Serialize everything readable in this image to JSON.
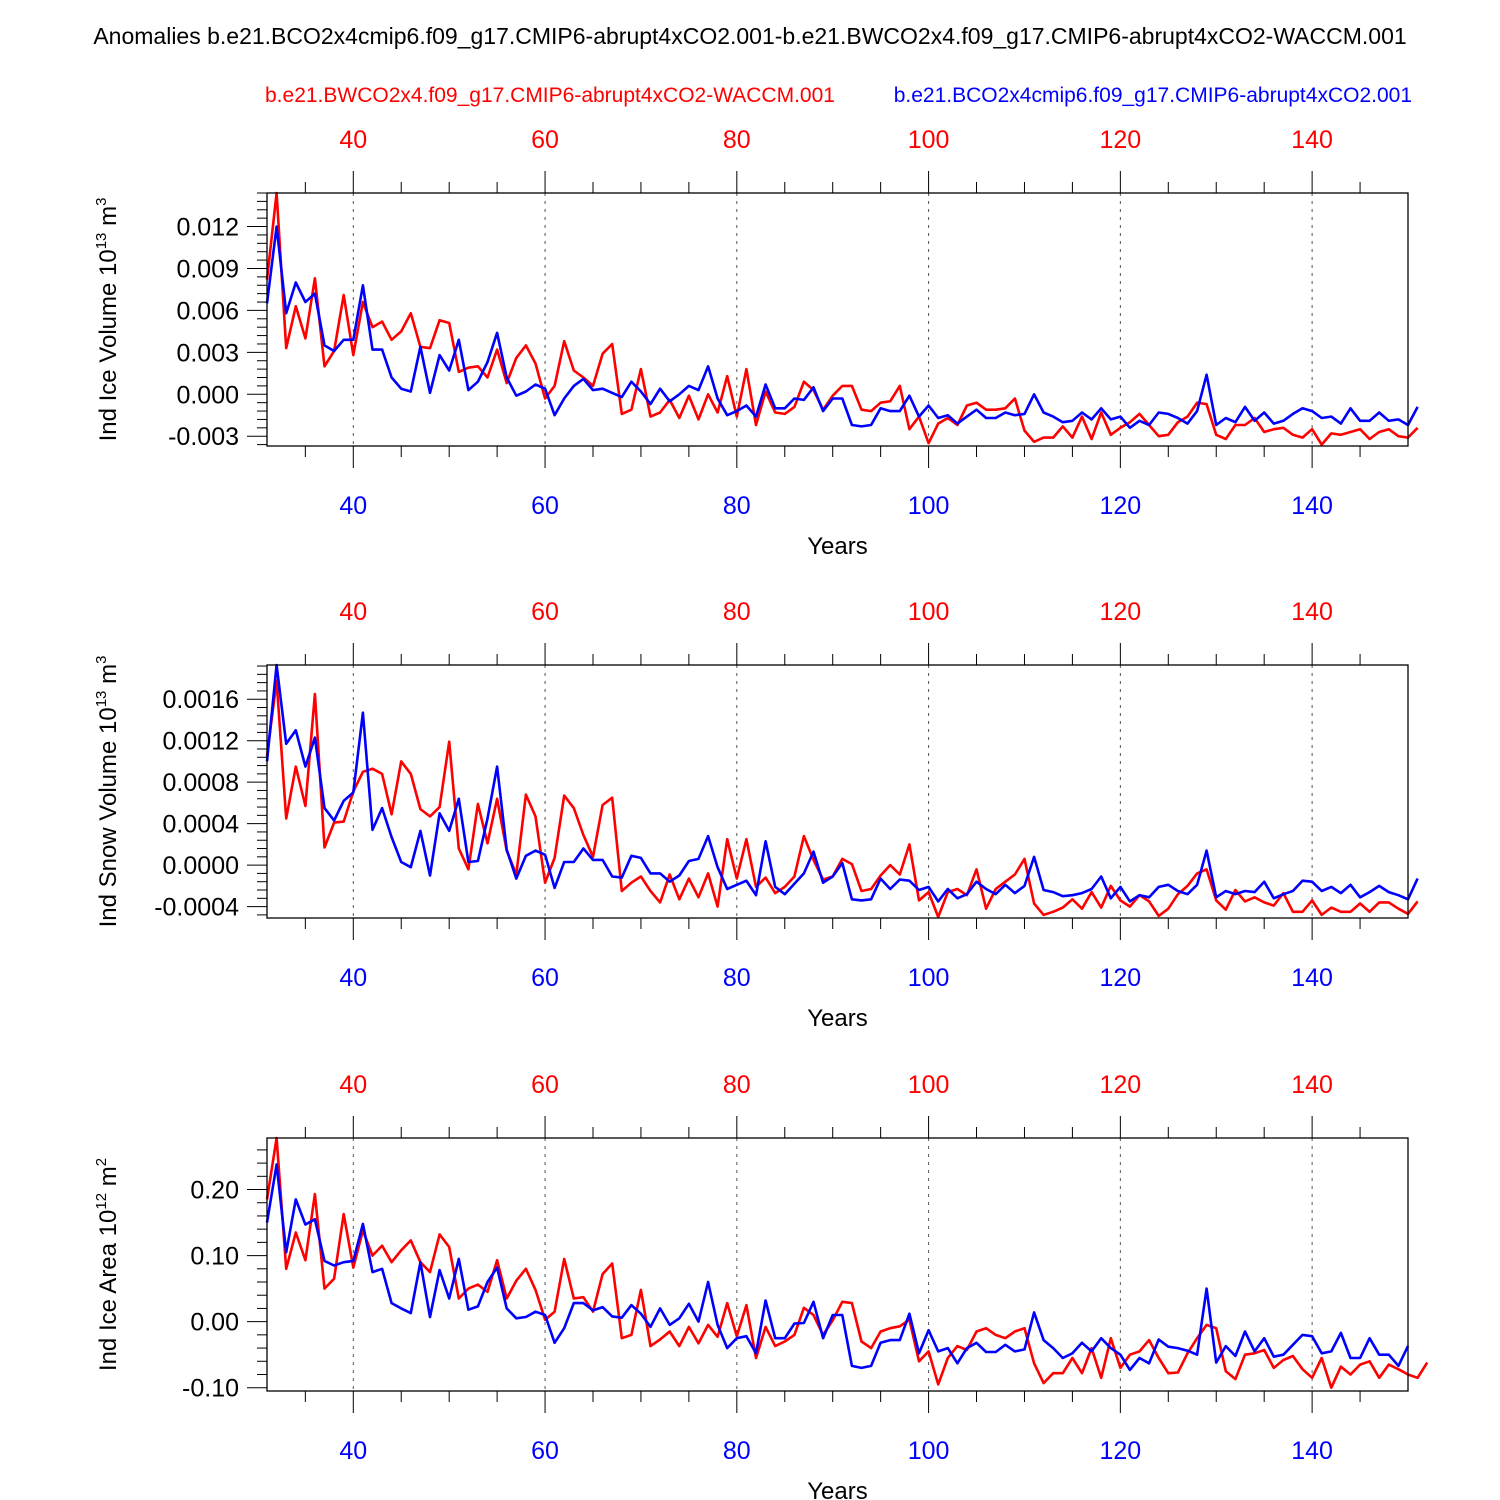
{
  "title": "Anomalies b.e21.BCO2x4cmip6.f09_g17.CMIP6-abrupt4xCO2.001-b.e21.BWCO2x4.f09_g17.CMIP6-abrupt4xCO2-WACCM.001",
  "legend": {
    "red": "b.e21.BWCO2x4.f09_g17.CMIP6-abrupt4xCO2-WACCM.001",
    "blue": "b.e21.BCO2x4cmip6.f09_g17.CMIP6-abrupt4xCO2.001"
  },
  "colors": {
    "red": "#ff0000",
    "blue": "#0000ff",
    "axis": "#000000",
    "grid": "#555555"
  },
  "chart_data": [
    {
      "type": "line",
      "ylabel": "Ind Ice Volume",
      "yunits": "10^13 m^3",
      "ylabel_parts": [
        "Ind Ice Volume 10",
        "13",
        " m",
        "3"
      ],
      "xlabel": "Years",
      "xlim": [
        31,
        150
      ],
      "ylim": [
        -0.0037,
        0.0144
      ],
      "xticks": [
        40,
        60,
        80,
        100,
        120,
        140
      ],
      "yticks": [
        -0.003,
        0.0,
        0.003,
        0.006,
        0.009,
        0.012
      ],
      "ytick_labels": [
        "-0.003",
        "0.000",
        "0.003",
        "0.006",
        "0.009",
        "0.012"
      ],
      "ytick_minor_step": 0.0006,
      "x_start": 31,
      "series": [
        {
          "name": "b.e21.BCO2x4cmip6.f09_g17.CMIP6-abrupt4xCO2.001",
          "color": "#0000ff",
          "values": [
            0.0065,
            0.012,
            0.0058,
            0.008,
            0.0066,
            0.0072,
            0.0035,
            0.0031,
            0.0039,
            0.0039,
            0.0078,
            0.0032,
            0.0032,
            0.0012,
            0.0004,
            0.0002,
            0.0034,
            0.0001,
            0.0028,
            0.0017,
            0.0039,
            0.0003,
            0.0009,
            0.0023,
            0.0044,
            0.0012,
            -0.0001,
            0.0002,
            0.0007,
            0.0004,
            -0.0015,
            -0.0003,
            0.0006,
            0.0011,
            0.0003,
            0.0004,
            0.0001,
            -0.0002,
            0.0009,
            0.0002,
            -0.0007,
            0.0004,
            -0.0005,
            0,
            0.0006,
            0.0003,
            0.002,
            -0.0003,
            -0.0015,
            -0.0012,
            -0.0008,
            -0.0016,
            0.0007,
            -0.001,
            -0.001,
            -0.0003,
            -0.0004,
            0.0005,
            -0.0012,
            -0.0003,
            -0.0003,
            -0.0022,
            -0.0023,
            -0.0022,
            -0.001,
            -0.0012,
            -0.0012,
            -0.0001,
            -0.0016,
            -0.0008,
            -0.0017,
            -0.0015,
            -0.0021,
            -0.0016,
            -0.0011,
            -0.0017,
            -0.0017,
            -0.0013,
            -0.0015,
            -0.0014,
            0,
            -0.0013,
            -0.0016,
            -0.002,
            -0.0019,
            -0.0013,
            -0.0018,
            -0.001,
            -0.0018,
            -0.0016,
            -0.0024,
            -0.0019,
            -0.0022,
            -0.0013,
            -0.0014,
            -0.0017,
            -0.0021,
            -0.0012,
            0.0014,
            -0.0022,
            -0.0017,
            -0.002,
            -0.0009,
            -0.0019,
            -0.0013,
            -0.0021,
            -0.0019,
            -0.0014,
            -0.001,
            -0.0012,
            -0.0017,
            -0.0016,
            -0.0021,
            -0.001,
            -0.0019,
            -0.0019,
            -0.0013,
            -0.0019,
            -0.0018,
            -0.0022,
            -0.0009
          ]
        },
        {
          "name": "b.e21.BWCO2x4.f09_g17.CMIP6-abrupt4xCO2-WACCM.001",
          "color": "#ff0000",
          "values": [
            0.0082,
            0.0144,
            0.0033,
            0.0063,
            0.004,
            0.0083,
            0.002,
            0.0031,
            0.0071,
            0.0028,
            0.0066,
            0.0048,
            0.0052,
            0.0039,
            0.0045,
            0.0058,
            0.0034,
            0.0033,
            0.0053,
            0.0051,
            0.0016,
            0.0019,
            0.002,
            0.0012,
            0.0032,
            0.0008,
            0.0026,
            0.0035,
            0.0022,
            -0.0003,
            0.0006,
            0.0038,
            0.0017,
            0.0012,
            0.0006,
            0.0029,
            0.0036,
            -0.0014,
            -0.0011,
            0.0018,
            -0.0016,
            -0.0013,
            -0.0004,
            -0.0017,
            -0.0001,
            -0.0018,
            0,
            -0.0013,
            0.0013,
            -0.0016,
            0.0018,
            -0.0022,
            0.0002,
            -0.0013,
            -0.0014,
            -0.0009,
            0.0009,
            0.0003,
            -0.0011,
            -0.0001,
            0.0006,
            0.0006,
            -0.0011,
            -0.0012,
            -0.0006,
            -0.0005,
            0.0006,
            -0.0025,
            -0.0016,
            -0.0035,
            -0.0021,
            -0.0017,
            -0.0022,
            -0.0008,
            -0.0006,
            -0.0011,
            -0.0011,
            -0.001,
            -0.0003,
            -0.0026,
            -0.0034,
            -0.0031,
            -0.0031,
            -0.0023,
            -0.0031,
            -0.0016,
            -0.0032,
            -0.0013,
            -0.0029,
            -0.0024,
            -0.002,
            -0.0014,
            -0.0022,
            -0.003,
            -0.0029,
            -0.002,
            -0.0016,
            -0.0006,
            -0.0007,
            -0.0029,
            -0.0032,
            -0.0022,
            -0.0022,
            -0.0017,
            -0.0027,
            -0.0025,
            -0.0024,
            -0.0029,
            -0.0031,
            -0.0025,
            -0.0036,
            -0.0028,
            -0.0029,
            -0.0027,
            -0.0025,
            -0.0032,
            -0.0027,
            -0.0025,
            -0.003,
            -0.0031,
            -0.0024
          ]
        }
      ]
    },
    {
      "type": "line",
      "ylabel": "Ind Snow Volume",
      "yunits": "10^13 m^3",
      "ylabel_parts": [
        "Ind Snow Volume 10",
        "13",
        " m",
        "3"
      ],
      "xlabel": "Years",
      "xlim": [
        31,
        150
      ],
      "ylim": [
        -0.00051,
        0.00193
      ],
      "xticks": [
        40,
        60,
        80,
        100,
        120,
        140
      ],
      "yticks": [
        -0.0004,
        0.0,
        0.0004,
        0.0008,
        0.0012,
        0.0016
      ],
      "ytick_labels": [
        "-0.0004",
        "0.0000",
        "0.0004",
        "0.0008",
        "0.0012",
        "0.0016"
      ],
      "ytick_minor_step": 8e-05,
      "x_start": 31,
      "series": [
        {
          "name": "b.e21.BCO2x4cmip6.f09_g17.CMIP6-abrupt4xCO2.001",
          "color": "#0000ff",
          "values": [
            0.001,
            0.00193,
            0.00117,
            0.0013,
            0.00095,
            0.00123,
            0.00055,
            0.00043,
            0.00062,
            0.0007,
            0.00147,
            0.00034,
            0.00055,
            0.00027,
            3e-05,
            -2e-05,
            0.00033,
            -0.0001,
            0.0005,
            0.00033,
            0.00064,
            3e-05,
            4e-05,
            0.00045,
            0.00095,
            0.00015,
            -0.00013,
            9e-05,
            0.00014,
            0.0001,
            -0.00022,
            3e-05,
            3e-05,
            0.00016,
            5e-05,
            5e-05,
            -0.00011,
            -0.00012,
            9e-05,
            7e-05,
            -8e-05,
            -8e-05,
            -0.00016,
            -0.0001,
            4e-05,
            6e-05,
            0.00028,
            -2e-05,
            -0.00023,
            -0.00019,
            -0.00015,
            -0.00029,
            0.00023,
            -0.00021,
            -0.00028,
            -0.00018,
            -8e-05,
            0.00013,
            -0.00017,
            -0.00011,
            2e-05,
            -0.00033,
            -0.00034,
            -0.00033,
            -0.00013,
            -0.00023,
            -0.00014,
            -0.00015,
            -0.00024,
            -0.00021,
            -0.00035,
            -0.00023,
            -0.00032,
            -0.00028,
            -0.00016,
            -0.00023,
            -0.00028,
            -0.00019,
            -0.00027,
            -0.0002,
            8e-05,
            -0.00024,
            -0.00026,
            -0.0003,
            -0.00029,
            -0.00027,
            -0.00023,
            -0.00011,
            -0.00032,
            -0.00021,
            -0.00035,
            -0.00029,
            -0.00031,
            -0.00021,
            -0.00019,
            -0.00025,
            -0.00028,
            -0.00019,
            0.00014,
            -0.00031,
            -0.00025,
            -0.00028,
            -0.00025,
            -0.00026,
            -0.00016,
            -0.00032,
            -0.00028,
            -0.00025,
            -0.00015,
            -0.00016,
            -0.00025,
            -0.00021,
            -0.00027,
            -0.00019,
            -0.00031,
            -0.00026,
            -0.0002,
            -0.00026,
            -0.00029,
            -0.00033,
            -0.00013
          ]
        },
        {
          "name": "b.e21.BWCO2x4.f09_g17.CMIP6-abrupt4xCO2-WACCM.001",
          "color": "#ff0000",
          "values": [
            0.00105,
            0.00178,
            0.00045,
            0.00095,
            0.00057,
            0.00165,
            0.00017,
            0.00041,
            0.00042,
            0.00071,
            0.0009,
            0.00093,
            0.00088,
            0.00049,
            0.001,
            0.00088,
            0.00054,
            0.00047,
            0.00056,
            0.00119,
            0.00016,
            -4e-05,
            0.00059,
            0.00021,
            0.00064,
            0.00014,
            -9e-05,
            0.00068,
            0.00047,
            -0.00017,
            7e-05,
            0.00067,
            0.00055,
            0.00029,
            8e-05,
            0.00058,
            0.00065,
            -0.00025,
            -0.00017,
            -0.00011,
            -0.00025,
            -0.00036,
            -9e-05,
            -0.00033,
            -0.00013,
            -0.00031,
            -8e-05,
            -0.0004,
            0.00025,
            -0.00013,
            0.00025,
            -0.00021,
            -0.00012,
            -0.00027,
            -0.00021,
            -0.00011,
            0.00028,
            5e-05,
            -0.00014,
            -0.00011,
            6e-05,
            1e-05,
            -0.00025,
            -0.00023,
            -0.0001,
            0,
            -9e-05,
            0.0002,
            -0.00034,
            -0.00026,
            -0.0005,
            -0.00026,
            -0.00023,
            -0.00029,
            -4e-05,
            -0.00042,
            -0.00023,
            -0.00016,
            -9e-05,
            6e-05,
            -0.00037,
            -0.00048,
            -0.00045,
            -0.00041,
            -0.00033,
            -0.00042,
            -0.00026,
            -0.00041,
            -0.0002,
            -0.00034,
            -0.0004,
            -0.00029,
            -0.00035,
            -0.00049,
            -0.00042,
            -0.00028,
            -0.0002,
            -8e-05,
            -4e-05,
            -0.00034,
            -0.00043,
            -0.00024,
            -0.00035,
            -0.00031,
            -0.00036,
            -0.00039,
            -0.00027,
            -0.00045,
            -0.00045,
            -0.00034,
            -0.00048,
            -0.00041,
            -0.00045,
            -0.00045,
            -0.00037,
            -0.00045,
            -0.00036,
            -0.00036,
            -0.00042,
            -0.00047,
            -0.00035
          ]
        }
      ]
    },
    {
      "type": "line",
      "ylabel": "Ind Ice Area",
      "yunits": "10^12 m^2",
      "ylabel_parts": [
        "Ind Ice Area 10",
        "12",
        " m",
        "2"
      ],
      "xlabel": "Years",
      "xlim": [
        31,
        150
      ],
      "ylim": [
        -0.105,
        0.278
      ],
      "xticks": [
        40,
        60,
        80,
        100,
        120,
        140
      ],
      "yticks": [
        -0.1,
        0.0,
        0.1,
        0.2
      ],
      "ytick_labels": [
        "-0.10",
        "0.00",
        "0.10",
        "0.20"
      ],
      "ytick_minor_step": 0.02,
      "x_start": 31,
      "series": [
        {
          "name": "b.e21.BCO2x4cmip6.f09_g17.CMIP6-abrupt4xCO2.001",
          "color": "#0000ff",
          "values": [
            0.15,
            0.238,
            0.105,
            0.185,
            0.147,
            0.155,
            0.092,
            0.085,
            0.09,
            0.092,
            0.148,
            0.075,
            0.08,
            0.028,
            0.02,
            0.013,
            0.09,
            0.007,
            0.078,
            0.035,
            0.095,
            0.018,
            0.023,
            0.06,
            0.082,
            0.02,
            0.005,
            0.007,
            0.015,
            0.01,
            -0.032,
            -0.01,
            0.028,
            0.028,
            0.017,
            0.022,
            0.008,
            0.006,
            0.025,
            0.012,
            -0.008,
            0.02,
            -0.005,
            0.005,
            0.027,
            0,
            0.06,
            -0.005,
            -0.04,
            -0.025,
            -0.022,
            -0.048,
            0.032,
            -0.025,
            -0.025,
            -0.003,
            -0.002,
            0.03,
            -0.025,
            0.01,
            0.01,
            -0.067,
            -0.07,
            -0.067,
            -0.032,
            -0.028,
            -0.028,
            0.012,
            -0.048,
            -0.013,
            -0.045,
            -0.04,
            -0.063,
            -0.04,
            -0.032,
            -0.046,
            -0.046,
            -0.035,
            -0.045,
            -0.042,
            0.014,
            -0.028,
            -0.04,
            -0.055,
            -0.048,
            -0.032,
            -0.045,
            -0.025,
            -0.04,
            -0.05,
            -0.073,
            -0.055,
            -0.063,
            -0.027,
            -0.038,
            -0.04,
            -0.044,
            -0.05,
            0.05,
            -0.062,
            -0.037,
            -0.052,
            -0.015,
            -0.045,
            -0.025,
            -0.053,
            -0.05,
            -0.035,
            -0.02,
            -0.022,
            -0.048,
            -0.045,
            -0.017,
            -0.055,
            -0.055,
            -0.025,
            -0.05,
            -0.05,
            -0.067,
            -0.037
          ]
        },
        {
          "name": "b.e21.BWCO2x4.f09_g17.CMIP6-abrupt4xCO2-WACCM.001",
          "color": "#ff0000",
          "values": [
            0.185,
            0.278,
            0.08,
            0.135,
            0.093,
            0.193,
            0.05,
            0.065,
            0.163,
            0.082,
            0.138,
            0.1,
            0.115,
            0.09,
            0.108,
            0.123,
            0.09,
            0.075,
            0.132,
            0.113,
            0.035,
            0.05,
            0.056,
            0.045,
            0.093,
            0.035,
            0.062,
            0.08,
            0.048,
            0.003,
            0.015,
            0.095,
            0.035,
            0.037,
            0.015,
            0.072,
            0.088,
            -0.025,
            -0.02,
            0.048,
            -0.037,
            -0.027,
            -0.015,
            -0.037,
            -0.008,
            -0.033,
            -0.005,
            -0.023,
            0.028,
            -0.022,
            0.025,
            -0.055,
            -0.008,
            -0.037,
            -0.03,
            -0.02,
            0.021,
            0.01,
            -0.02,
            0.002,
            0.03,
            0.028,
            -0.03,
            -0.04,
            -0.015,
            -0.01,
            -0.007,
            0.003,
            -0.06,
            -0.045,
            -0.095,
            -0.055,
            -0.037,
            -0.043,
            -0.015,
            -0.01,
            -0.02,
            -0.025,
            -0.015,
            -0.01,
            -0.063,
            -0.093,
            -0.078,
            -0.078,
            -0.055,
            -0.078,
            -0.04,
            -0.085,
            -0.025,
            -0.07,
            -0.05,
            -0.045,
            -0.028,
            -0.055,
            -0.078,
            -0.077,
            -0.048,
            -0.025,
            -0.005,
            -0.01,
            -0.075,
            -0.087,
            -0.05,
            -0.048,
            -0.043,
            -0.07,
            -0.058,
            -0.052,
            -0.072,
            -0.085,
            -0.055,
            -0.1,
            -0.068,
            -0.08,
            -0.065,
            -0.06,
            -0.085,
            -0.065,
            -0.072,
            -0.08,
            -0.085,
            -0.062
          ]
        }
      ]
    }
  ]
}
